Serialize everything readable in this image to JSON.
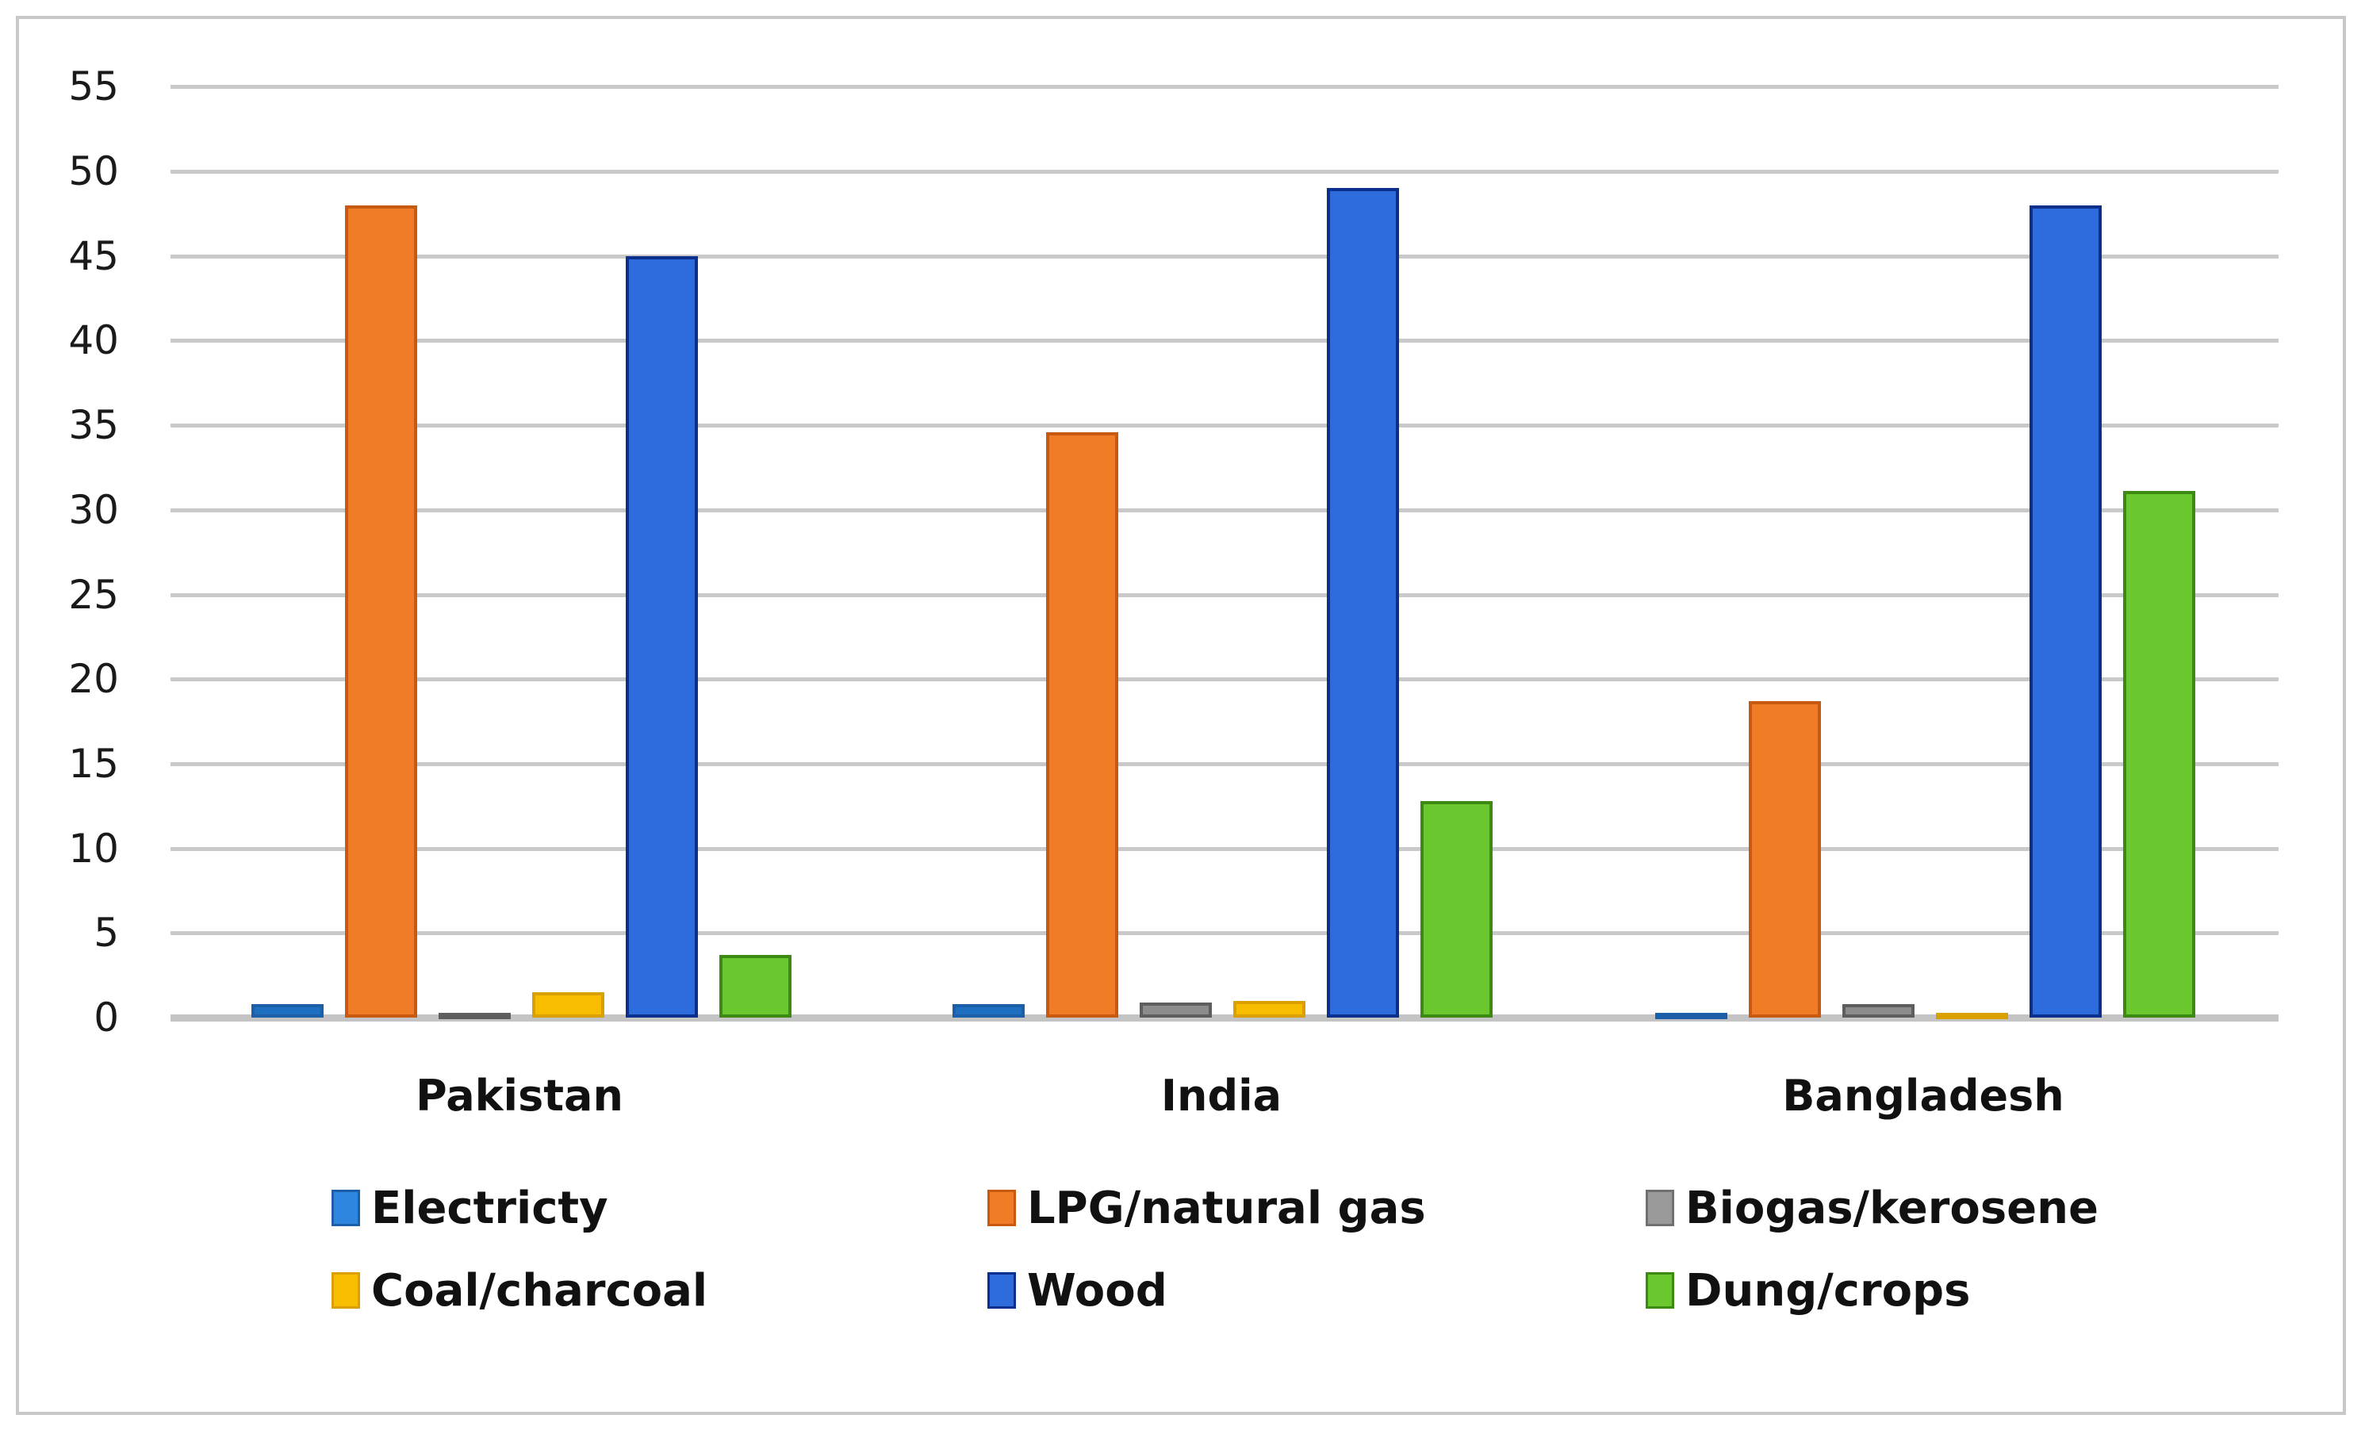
{
  "chart_data": {
    "type": "bar",
    "title": "",
    "xlabel": "",
    "ylabel": "",
    "ylim": [
      0,
      55
    ],
    "yticks": [
      0,
      5,
      10,
      15,
      20,
      25,
      30,
      35,
      40,
      45,
      50,
      55
    ],
    "grid": true,
    "legend_position": "bottom",
    "categories": [
      "Pakistan",
      "India",
      "Bangladesh"
    ],
    "series": [
      {
        "name": "Electricty",
        "color": "#2e75d4",
        "values": [
          0.8,
          0.8,
          0.2
        ]
      },
      {
        "name": "LPG/natural gas",
        "color": "#f07c28",
        "values": [
          48,
          34.6,
          18.7
        ]
      },
      {
        "name": "Biogas/kerosene",
        "color": "#8c8c8c",
        "values": [
          0.3,
          0.9,
          0.8
        ]
      },
      {
        "name": "Coal/charcoal",
        "color": "#f9bd00",
        "values": [
          1.5,
          1.0,
          0.2
        ]
      },
      {
        "name": "Wood",
        "color": "#2e6bdc",
        "values": [
          45,
          49,
          48
        ]
      },
      {
        "name": "Dung/crops",
        "color": "#6ac72d",
        "values": [
          3.7,
          12.8,
          31.1
        ]
      }
    ]
  },
  "axis": {
    "yticks": [
      "0",
      "5",
      "10",
      "15",
      "20",
      "25",
      "30",
      "35",
      "40",
      "45",
      "50",
      "55"
    ]
  },
  "categories": [
    "Pakistan",
    "India",
    "Bangladesh"
  ],
  "legend": [
    {
      "label": "Electricty",
      "color": "#2e86de",
      "border": "#1a5fa8"
    },
    {
      "label": "LPG/natural gas",
      "color": "#f07c28",
      "border": "#c85a10"
    },
    {
      "label": "Biogas/kerosene",
      "color": "#9a9a9a",
      "border": "#707070"
    },
    {
      "label": "Coal/charcoal",
      "color": "#f9bd00",
      "border": "#d9a000"
    },
    {
      "label": "Wood",
      "color": "#2e6bdc",
      "border": "#0a2f8c"
    },
    {
      "label": "Dung/crops",
      "color": "#6ac72d",
      "border": "#3d8a12"
    }
  ],
  "bar_borders": [
    "#1a5fa8",
    "#c85a10",
    "#5e5e5e",
    "#d9a000",
    "#0a2f8c",
    "#3d8a12"
  ],
  "bar_fills": [
    "#1f6fc0",
    "#f07c28",
    "#8c8c8c",
    "#f9bd00",
    "#2e6bdc",
    "#6ac72d"
  ]
}
